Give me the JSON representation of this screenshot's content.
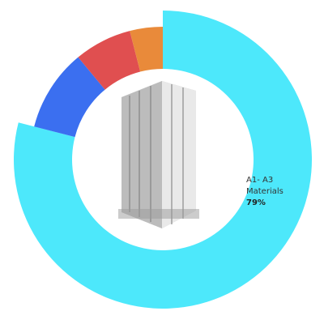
{
  "chart_data": {
    "type": "donut",
    "categories": [
      "A1- A3 Materials",
      null,
      null,
      null
    ],
    "values": [
      79,
      10,
      7,
      4
    ],
    "value_labels": [
      "79%",
      null,
      null,
      null
    ],
    "colors": [
      "#4de8fb",
      "#3b6ff0",
      "#e04f50",
      "#e98a3a"
    ]
  }
}
